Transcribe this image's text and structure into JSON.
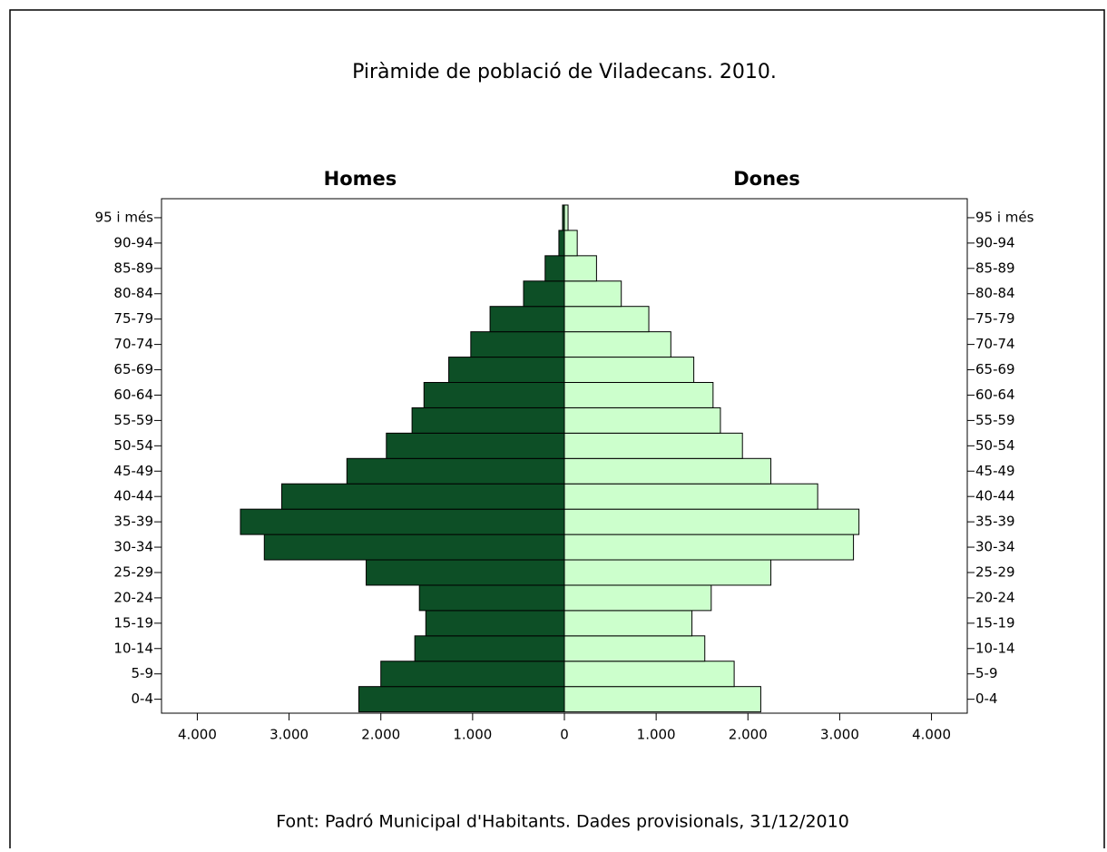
{
  "chart_data": {
    "type": "population-pyramid",
    "title": "Piràmide de població de Viladecans. 2010.",
    "source": "Font: Padró Municipal d'Habitants. Dades provisionals, 31/12/2010",
    "categories": [
      "0-4",
      "5-9",
      "10-14",
      "15-19",
      "20-24",
      "25-29",
      "30-34",
      "35-39",
      "40-44",
      "45-49",
      "50-54",
      "55-59",
      "60-64",
      "65-69",
      "70-74",
      "75-79",
      "80-84",
      "85-89",
      "90-94",
      "95 i més"
    ],
    "series": [
      {
        "name": "Homes",
        "color": "#0d4f26",
        "values": [
          2240,
          2000,
          1630,
          1510,
          1580,
          2160,
          3270,
          3530,
          3080,
          2370,
          1940,
          1660,
          1530,
          1260,
          1020,
          810,
          445,
          210,
          60,
          20
        ]
      },
      {
        "name": "Dones",
        "color": "#ccffcc",
        "values": [
          2140,
          1850,
          1530,
          1390,
          1600,
          2250,
          3150,
          3210,
          2760,
          2250,
          1940,
          1700,
          1620,
          1410,
          1160,
          920,
          620,
          350,
          140,
          40
        ]
      }
    ],
    "xlim": [
      0,
      4390
    ],
    "xticks": [
      0,
      {
        "value": 1000,
        "label": "1.000"
      },
      {
        "value": 2000,
        "label": "2.000"
      },
      {
        "value": 3000,
        "label": "3.000"
      },
      {
        "value": 4000,
        "label": "4.000"
      }
    ]
  }
}
